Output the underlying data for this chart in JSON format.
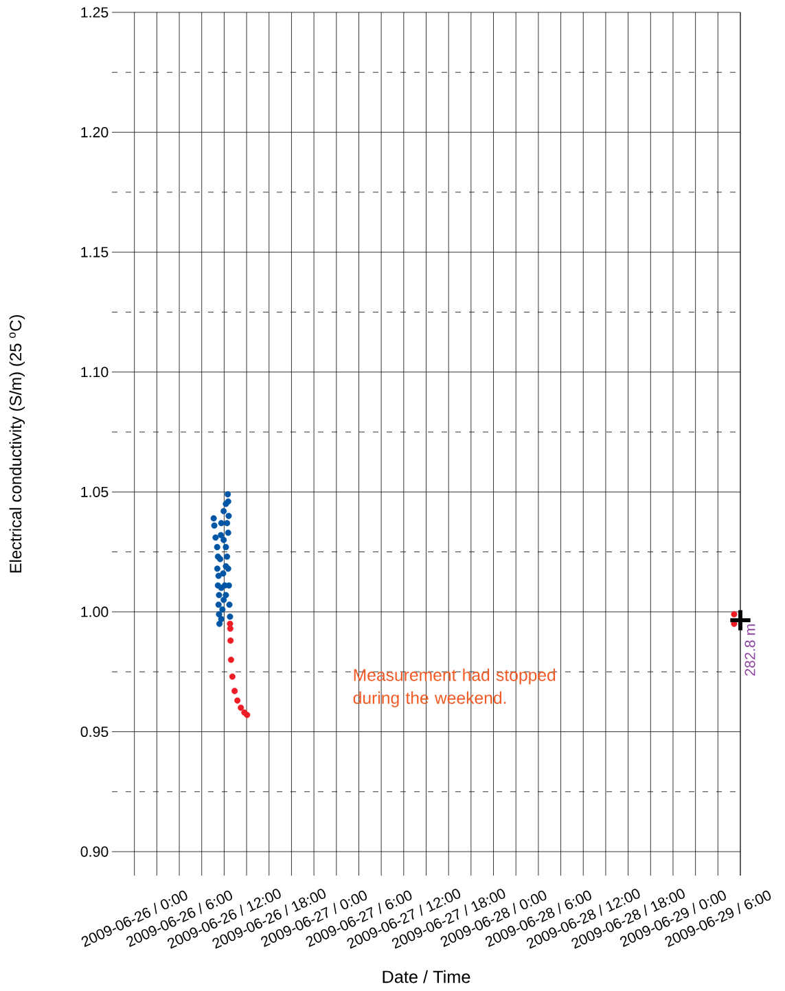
{
  "chart_data": {
    "type": "scatter",
    "xlabel": "Date / Time",
    "ylabel": "Electrical conductivity (S/m) (25 $^{o}$C)",
    "xlim": [
      "2009-06-25T21:00",
      "2009-06-29T09:00"
    ],
    "ylim": [
      0.89,
      1.25
    ],
    "xticks": [
      {
        "value": "2009-06-26T00:00",
        "label": "2009-06-26 / 0:00"
      },
      {
        "value": "2009-06-26T03:00",
        "label": null
      },
      {
        "value": "2009-06-26T06:00",
        "label": "2009-06-26 / 6:00"
      },
      {
        "value": "2009-06-26T09:00",
        "label": null
      },
      {
        "value": "2009-06-26T12:00",
        "label": "2009-06-26 / 12:00"
      },
      {
        "value": "2009-06-26T15:00",
        "label": null
      },
      {
        "value": "2009-06-26T18:00",
        "label": "2009-06-26 / 18:00"
      },
      {
        "value": "2009-06-26T21:00",
        "label": null
      },
      {
        "value": "2009-06-27T00:00",
        "label": "2009-06-27 / 0:00"
      },
      {
        "value": "2009-06-27T03:00",
        "label": null
      },
      {
        "value": "2009-06-27T06:00",
        "label": "2009-06-27 / 6:00"
      },
      {
        "value": "2009-06-27T09:00",
        "label": null
      },
      {
        "value": "2009-06-27T12:00",
        "label": "2009-06-27 / 12:00"
      },
      {
        "value": "2009-06-27T15:00",
        "label": null
      },
      {
        "value": "2009-06-27T18:00",
        "label": "2009-06-27 / 18:00"
      },
      {
        "value": "2009-06-27T21:00",
        "label": null
      },
      {
        "value": "2009-06-28T00:00",
        "label": "2009-06-28 / 0:00"
      },
      {
        "value": "2009-06-28T03:00",
        "label": null
      },
      {
        "value": "2009-06-28T06:00",
        "label": "2009-06-28 / 6:00"
      },
      {
        "value": "2009-06-28T09:00",
        "label": null
      },
      {
        "value": "2009-06-28T12:00",
        "label": "2009-06-28 / 12:00"
      },
      {
        "value": "2009-06-28T15:00",
        "label": null
      },
      {
        "value": "2009-06-28T18:00",
        "label": "2009-06-28 / 18:00"
      },
      {
        "value": "2009-06-28T21:00",
        "label": null
      },
      {
        "value": "2009-06-29T00:00",
        "label": "2009-06-29 / 0:00"
      },
      {
        "value": "2009-06-29T03:00",
        "label": null
      },
      {
        "value": "2009-06-29T06:00",
        "label": "2009-06-29 / 6:00"
      },
      {
        "value": "2009-06-29T09:00",
        "label": null
      }
    ],
    "yticks": [
      {
        "value": 0.9,
        "label": "0.90"
      },
      {
        "value": 0.925,
        "label": null
      },
      {
        "value": 0.95,
        "label": "0.95"
      },
      {
        "value": 0.975,
        "label": null
      },
      {
        "value": 1.0,
        "label": "1.00"
      },
      {
        "value": 1.025,
        "label": null
      },
      {
        "value": 1.05,
        "label": "1.05"
      },
      {
        "value": 1.075,
        "label": null
      },
      {
        "value": 1.1,
        "label": "1.10"
      },
      {
        "value": 1.125,
        "label": null
      },
      {
        "value": 1.15,
        "label": "1.15"
      },
      {
        "value": 1.175,
        "label": null
      },
      {
        "value": 1.2,
        "label": "1.20"
      },
      {
        "value": 1.225,
        "label": null
      },
      {
        "value": 1.25,
        "label": "1.25"
      }
    ],
    "grid": true,
    "marker": "circle",
    "series": [
      {
        "color": "#0055a5",
        "x": [
          "2009-06-26T10:36",
          "2009-06-26T10:41",
          "2009-06-26T10:51",
          "2009-06-26T11:04",
          "2009-06-26T11:10",
          "2009-06-26T11:05",
          "2009-06-26T11:15",
          "2009-06-26T11:10",
          "2009-06-26T11:19",
          "2009-06-26T11:15",
          "2009-06-26T11:19",
          "2009-06-26T11:22",
          "2009-06-26T11:37",
          "2009-06-26T11:46",
          "2009-06-26T11:56",
          "2009-06-26T11:37",
          "2009-06-26T12:05",
          "2009-06-26T11:52",
          "2009-06-26T12:14",
          "2009-06-26T12:23",
          "2009-06-26T12:32",
          "2009-06-26T12:38",
          "2009-06-26T12:42",
          "2009-06-26T12:47",
          "2009-06-26T12:14",
          "2009-06-26T11:56",
          "2009-06-26T12:23",
          "2009-06-26T11:56",
          "2009-06-26T12:14",
          "2009-06-26T12:29",
          "2009-06-26T12:32",
          "2009-06-26T12:36",
          "2009-06-26T12:32",
          "2009-06-26T11:34",
          "2009-06-26T11:37",
          "2009-06-26T11:28",
          "2009-06-26T12:14"
        ],
        "values": [
          1.039,
          1.036,
          1.031,
          1.027,
          1.023,
          1.018,
          1.015,
          1.011,
          1.007,
          1.003,
          0.999,
          0.995,
          0.997,
          1.001,
          1.005,
          1.01,
          1.011,
          1.016,
          1.019,
          1.023,
          1.018,
          1.011,
          1.003,
          0.998,
          1.027,
          1.03,
          1.037,
          1.042,
          1.045,
          1.049,
          1.046,
          1.04,
          1.033,
          1.032,
          1.037,
          1.022,
          1.007
        ]
      },
      {
        "color": "#ee1c25",
        "x": [
          "2009-06-26T12:47",
          "2009-06-26T12:49",
          "2009-06-26T12:51",
          "2009-06-26T12:55",
          "2009-06-26T13:06",
          "2009-06-26T13:24",
          "2009-06-26T13:46",
          "2009-06-26T14:14",
          "2009-06-26T14:42",
          "2009-06-26T15:04",
          "2009-06-29T08:10",
          "2009-06-29T08:10"
        ],
        "values": [
          0.995,
          0.993,
          0.988,
          0.98,
          0.973,
          0.967,
          0.963,
          0.96,
          0.958,
          0.957,
          0.999,
          0.995
        ]
      },
      {
        "color": "#000000",
        "marker": "cross",
        "x": [
          "2009-06-29T09:00"
        ],
        "values": [
          0.9965
        ]
      }
    ],
    "annotations": [
      {
        "text": "282.8 m",
        "x": "2009-06-29T09:00",
        "y": 0.9965
      },
      "Measurement had stopped during the weekend."
    ]
  }
}
